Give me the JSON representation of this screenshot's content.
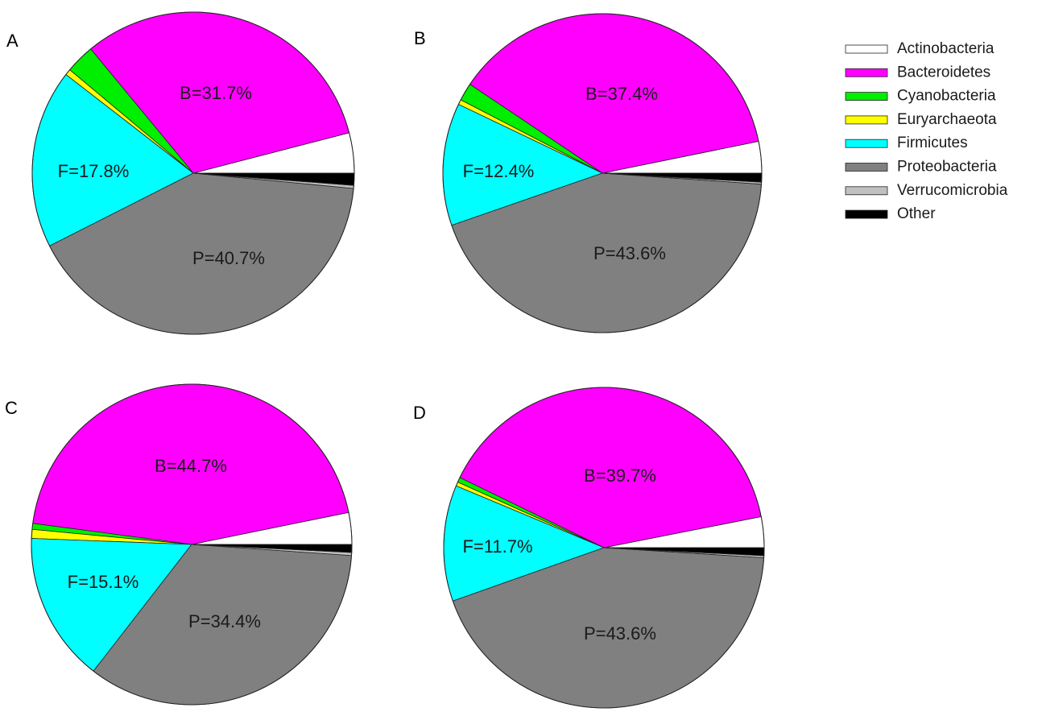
{
  "figure": {
    "legend": [
      {
        "name": "Actinobacteria",
        "color": "#ffffff"
      },
      {
        "name": "Bacteroidetes",
        "color": "#ff00ff"
      },
      {
        "name": "Cyanobacteria",
        "color": "#00ee00"
      },
      {
        "name": "Euryarchaeota",
        "color": "#ffff00"
      },
      {
        "name": "Firmicutes",
        "color": "#00ffff"
      },
      {
        "name": "Proteobacteria",
        "color": "#808080"
      },
      {
        "name": "Verrucomicrobia",
        "color": "#c0c0c0"
      },
      {
        "name": "Other",
        "color": "#000000"
      }
    ]
  },
  "chart_data": [
    {
      "type": "pie",
      "panel": "A",
      "slices": [
        {
          "name": "Actinobacteria",
          "value": 4.0
        },
        {
          "name": "Bacteroidetes",
          "value": 31.7,
          "label": "B=31.7%"
        },
        {
          "name": "Cyanobacteria",
          "value": 2.9
        },
        {
          "name": "Euryarchaeota",
          "value": 0.6
        },
        {
          "name": "Firmicutes",
          "value": 17.8,
          "label": "F=17.8%"
        },
        {
          "name": "Proteobacteria",
          "value": 40.7,
          "label": "P=40.7%"
        },
        {
          "name": "Verrucomicrobia",
          "value": 0.3
        },
        {
          "name": "Other",
          "value": 1.2
        }
      ]
    },
    {
      "type": "pie",
      "panel": "B",
      "slices": [
        {
          "name": "Actinobacteria",
          "value": 3.2
        },
        {
          "name": "Bacteroidetes",
          "value": 37.4,
          "label": "B=37.4%"
        },
        {
          "name": "Cyanobacteria",
          "value": 1.8
        },
        {
          "name": "Euryarchaeota",
          "value": 0.5
        },
        {
          "name": "Firmicutes",
          "value": 12.4,
          "label": "F=12.4%"
        },
        {
          "name": "Proteobacteria",
          "value": 43.6,
          "label": "P=43.6%"
        },
        {
          "name": "Verrucomicrobia",
          "value": 0.2
        },
        {
          "name": "Other",
          "value": 0.9
        }
      ]
    },
    {
      "type": "pie",
      "panel": "C",
      "slices": [
        {
          "name": "Actinobacteria",
          "value": 3.2
        },
        {
          "name": "Bacteroidetes",
          "value": 44.7,
          "label": "B=44.7%"
        },
        {
          "name": "Cyanobacteria",
          "value": 0.6
        },
        {
          "name": "Euryarchaeota",
          "value": 0.9
        },
        {
          "name": "Firmicutes",
          "value": 15.1,
          "label": "F=15.1%"
        },
        {
          "name": "Proteobacteria",
          "value": 34.4,
          "label": "P=34.4%"
        },
        {
          "name": "Verrucomicrobia",
          "value": 0.3
        },
        {
          "name": "Other",
          "value": 0.8
        }
      ]
    },
    {
      "type": "pie",
      "panel": "D",
      "slices": [
        {
          "name": "Actinobacteria",
          "value": 3.1
        },
        {
          "name": "Bacteroidetes",
          "value": 39.7,
          "label": "B=39.7%"
        },
        {
          "name": "Cyanobacteria",
          "value": 0.5
        },
        {
          "name": "Euryarchaeota",
          "value": 0.4
        },
        {
          "name": "Firmicutes",
          "value": 11.7,
          "label": "F=11.7%"
        },
        {
          "name": "Proteobacteria",
          "value": 43.6,
          "label": "P=43.6%"
        },
        {
          "name": "Verrucomicrobia",
          "value": 0.2
        },
        {
          "name": "Other",
          "value": 0.8
        }
      ]
    }
  ]
}
